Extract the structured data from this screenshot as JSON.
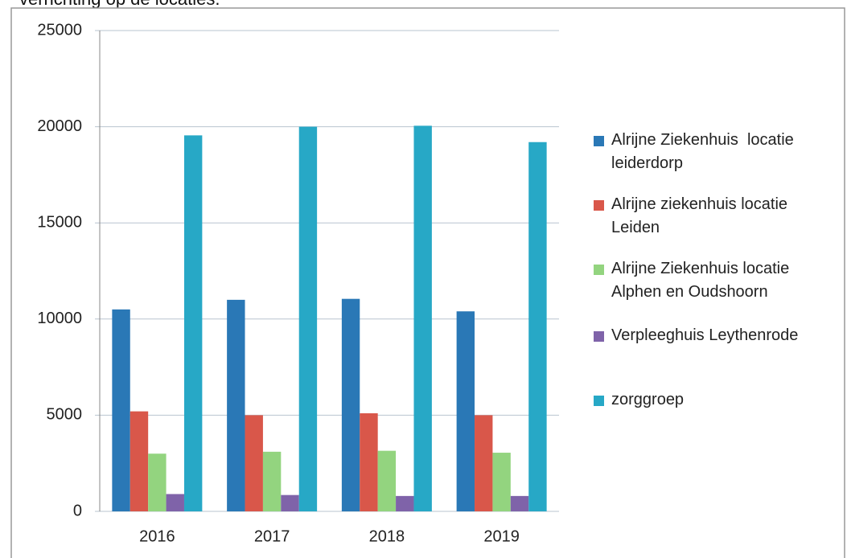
{
  "caption": "verrichting op de locaties.",
  "chart_data": {
    "type": "bar",
    "categories": [
      "2016",
      "2017",
      "2018",
      "2019"
    ],
    "series": [
      {
        "name": "Alrijne Ziekenhuis  locatie leiderdorp",
        "color": "#2a78b6",
        "values": [
          10500,
          11000,
          11050,
          10400
        ]
      },
      {
        "name": "Alrijne ziekenhuis locatie Leiden",
        "color": "#d9574a",
        "values": [
          5200,
          5000,
          5100,
          5000
        ]
      },
      {
        "name": "Alrijne Ziekenhuis locatie Alphen en Oudshoorn",
        "color": "#93d47f",
        "values": [
          3000,
          3100,
          3150,
          3050
        ]
      },
      {
        "name": "Verpleeghuis Leythenrode",
        "color": "#7f63a9",
        "values": [
          900,
          850,
          800,
          800
        ]
      },
      {
        "name": "zorggroep",
        "color": "#27a8c6",
        "values": [
          19550,
          20000,
          20050,
          19200
        ]
      }
    ],
    "ylim": [
      0,
      25000
    ],
    "yticks": [
      0,
      5000,
      10000,
      15000,
      20000,
      25000
    ],
    "grid": true
  }
}
